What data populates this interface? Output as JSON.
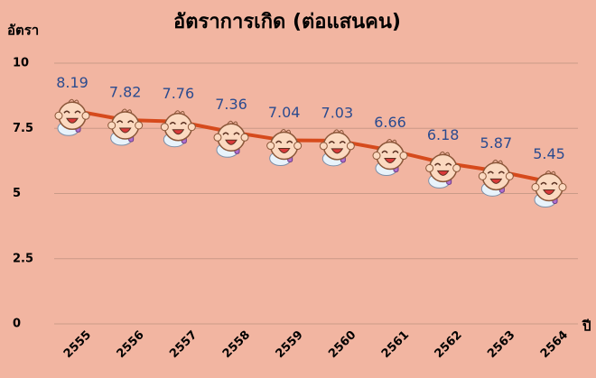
{
  "chart_data": {
    "type": "line",
    "title": "อัตราการเกิด (ต่อแสนคน)",
    "y_label": "อัตรา",
    "x_label": "ปี",
    "categories": [
      "2555",
      "2556",
      "2557",
      "2558",
      "2559",
      "2560",
      "2561",
      "2562",
      "2563",
      "2564"
    ],
    "series": [
      {
        "name": "อัตราการเกิด",
        "color": "#d64a1c",
        "values": [
          8.19,
          7.82,
          7.76,
          7.36,
          7.04,
          7.03,
          6.66,
          6.18,
          5.87,
          5.45
        ]
      }
    ],
    "ylim": [
      0,
      10
    ],
    "yticks": [
      0,
      {
        "value": 2.5,
        "label": "2.5"
      },
      5,
      {
        "value": 7.5,
        "label": "7.5"
      },
      10
    ],
    "grid": true
  }
}
